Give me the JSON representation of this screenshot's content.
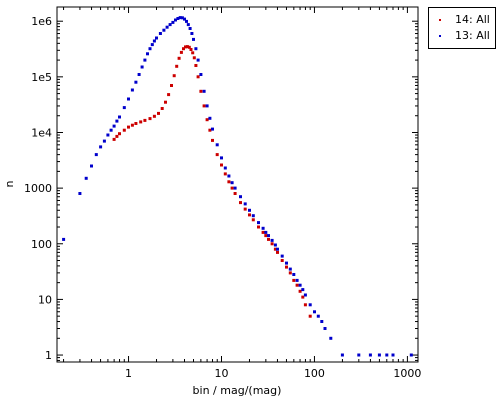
{
  "chart_data": {
    "type": "scatter",
    "title": "",
    "xlabel": "bin / mag/(mag)",
    "ylabel": "n",
    "xscale": "log",
    "yscale": "log",
    "xlim": [
      0.17,
      1300
    ],
    "ylim": [
      0.75,
      1800000
    ],
    "x_ticks": [
      1,
      10,
      100,
      1000
    ],
    "x_tick_labels": [
      "1",
      "10",
      "100",
      "1000"
    ],
    "y_ticks": [
      1,
      10,
      100,
      1000,
      10000,
      100000,
      1000000
    ],
    "y_tick_labels": [
      "1",
      "10",
      "100",
      "1000",
      "1e4",
      "1e5",
      "1e6"
    ],
    "grid": false,
    "legend_position": "outside-top-right",
    "series": [
      {
        "name": "14: All",
        "color": "#cc0000",
        "x": [
          0.7,
          0.75,
          0.8,
          0.9,
          1.0,
          1.1,
          1.2,
          1.35,
          1.5,
          1.7,
          1.9,
          2.1,
          2.3,
          2.5,
          2.7,
          2.9,
          3.1,
          3.3,
          3.5,
          3.7,
          3.9,
          4.1,
          4.3,
          4.5,
          4.7,
          4.9,
          5.1,
          5.3,
          5.6,
          6.0,
          6.5,
          7.0,
          7.5,
          8.0,
          9.0,
          10,
          11,
          12,
          13,
          14,
          16,
          18,
          20,
          22,
          25,
          28,
          30,
          32,
          35,
          38,
          40,
          45,
          50,
          55,
          60,
          65,
          70,
          75,
          80,
          90
        ],
        "y": [
          7500,
          8500,
          9500,
          11000,
          12500,
          13500,
          14500,
          15500,
          16500,
          17800,
          19500,
          22000,
          27000,
          35000,
          48000,
          70000,
          105000,
          155000,
          215000,
          275000,
          320000,
          345000,
          350000,
          340000,
          310000,
          270000,
          220000,
          160000,
          100000,
          55000,
          30000,
          17000,
          11000,
          7200,
          4000,
          2600,
          1800,
          1300,
          1000,
          800,
          550,
          420,
          330,
          270,
          200,
          160,
          140,
          120,
          100,
          80,
          70,
          50,
          38,
          30,
          22,
          18,
          14,
          11,
          8,
          5
        ]
      },
      {
        "name": "13: All",
        "color": "#0000cc",
        "x": [
          0.2,
          0.3,
          0.35,
          0.4,
          0.45,
          0.5,
          0.55,
          0.6,
          0.65,
          0.7,
          0.75,
          0.8,
          0.9,
          1.0,
          1.1,
          1.2,
          1.3,
          1.4,
          1.5,
          1.6,
          1.7,
          1.8,
          1.9,
          2.0,
          2.2,
          2.4,
          2.6,
          2.8,
          3.0,
          3.2,
          3.4,
          3.6,
          3.8,
          4.0,
          4.2,
          4.4,
          4.6,
          4.8,
          5.0,
          5.3,
          5.6,
          6.0,
          6.5,
          7.0,
          7.5,
          8.0,
          9.0,
          10,
          11,
          12,
          13,
          14,
          16,
          18,
          20,
          22,
          25,
          28,
          30,
          32,
          35,
          38,
          40,
          45,
          50,
          55,
          60,
          65,
          70,
          75,
          80,
          90,
          100,
          110,
          120,
          130,
          150,
          200,
          300,
          400,
          500,
          600,
          700,
          1100
        ],
        "y": [
          120,
          800,
          1500,
          2500,
          4000,
          5500,
          7000,
          9000,
          11000,
          13000,
          16000,
          19000,
          28000,
          40000,
          58000,
          80000,
          110000,
          150000,
          200000,
          260000,
          320000,
          380000,
          440000,
          500000,
          600000,
          690000,
          780000,
          870000,
          950000,
          1050000,
          1120000,
          1160000,
          1150000,
          1090000,
          990000,
          870000,
          740000,
          600000,
          470000,
          320000,
          200000,
          110000,
          55000,
          30000,
          18000,
          11500,
          6000,
          3500,
          2300,
          1650,
          1250,
          1000,
          700,
          520,
          400,
          320,
          240,
          190,
          160,
          140,
          115,
          95,
          80,
          60,
          45,
          35,
          28,
          22,
          18,
          15,
          12,
          8,
          6,
          5,
          4,
          3,
          2,
          1,
          1,
          1,
          1,
          1,
          1,
          1
        ]
      }
    ]
  }
}
